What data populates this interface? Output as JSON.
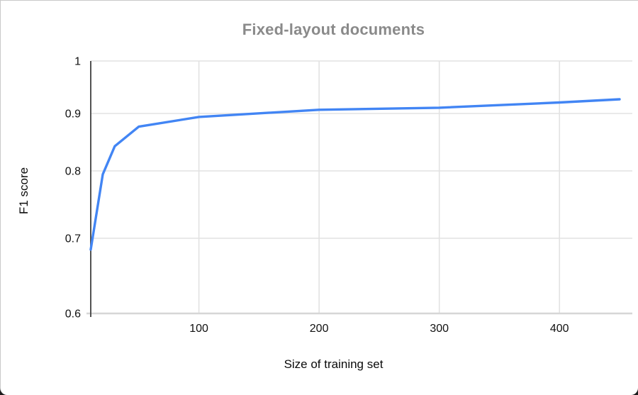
{
  "chart_data": {
    "type": "line",
    "title": "Fixed-layout documents",
    "xlabel": "Size of training set",
    "ylabel": "F1 score",
    "x": [
      10,
      20,
      30,
      50,
      100,
      200,
      300,
      400,
      450
    ],
    "series": [
      {
        "name": "F1 score",
        "color": "#4285f4",
        "values": [
          0.685,
          0.795,
          0.843,
          0.877,
          0.894,
          0.907,
          0.911,
          0.921,
          0.927
        ]
      }
    ],
    "xlim": [
      10,
      450
    ],
    "ylim": [
      0.6,
      1.0
    ],
    "x_ticks": [
      100,
      200,
      300,
      400
    ],
    "x_tick_labels": [
      "100",
      "200",
      "300",
      "400"
    ],
    "y_ticks": [
      1,
      0.9,
      0.8,
      0.7,
      0.6
    ],
    "y_tick_labels": [
      "1",
      "0.9",
      "0.8",
      "0.7",
      "0.6"
    ],
    "grid": true,
    "legend_position": "none",
    "colors": {
      "title": "#8a8a8a",
      "axis_titles": "#0b0b0b",
      "tick_labels": "#111111",
      "gridlines": "#e2e2e2",
      "baseline": "#d6d6d6",
      "y_axis_line": "#3f3f3f",
      "background": "#ffffff"
    }
  }
}
